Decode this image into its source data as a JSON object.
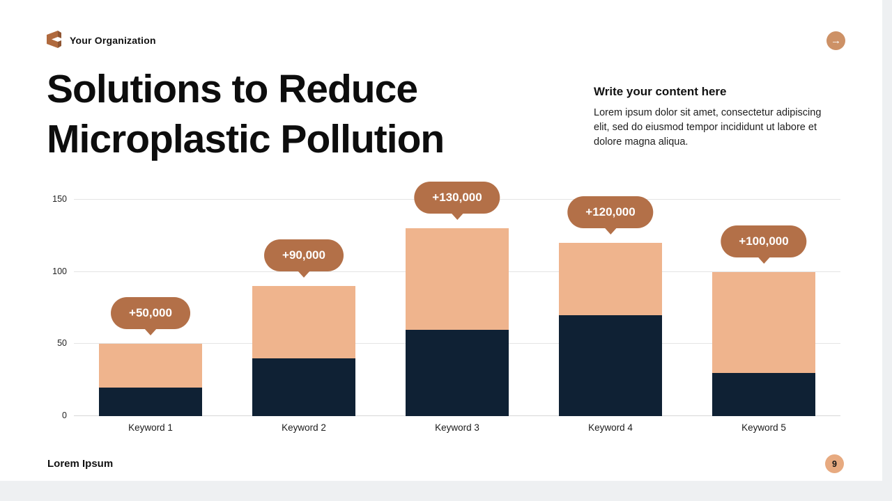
{
  "header": {
    "organization": "Your Organization",
    "logo_icon": "folded-ribbon-logo",
    "next_icon": "arrow-right",
    "next_glyph": "→"
  },
  "title": {
    "line1": "Solutions to Reduce",
    "line2": "Microplastic Pollution"
  },
  "content": {
    "heading": "Write your content here",
    "body": "Lorem ipsum dolor sit amet, consectetur adipiscing elit, sed do eiusmod tempor incididunt ut labore et dolore magna aliqua."
  },
  "footer": {
    "text": "Lorem Ipsum",
    "page_number": "9"
  },
  "colors": {
    "callout": "#b37048",
    "bar_dark": "#0f2134",
    "bar_light": "#efb48d",
    "accent_circle": "#cd9166",
    "page_badge": "#e7aa80"
  },
  "chart_data": {
    "type": "bar",
    "stacked": true,
    "title": "",
    "xlabel": "",
    "ylabel": "",
    "categories": [
      "Keyword 1",
      "Keyword 2",
      "Keyword 3",
      "Keyword 4",
      "Keyword 5"
    ],
    "series": [
      {
        "name": "bottom-segment",
        "color": "#0f2134",
        "values": [
          20,
          40,
          60,
          70,
          30
        ]
      },
      {
        "name": "top-segment",
        "color": "#efb48d",
        "values": [
          30,
          50,
          70,
          50,
          70
        ]
      }
    ],
    "totals": [
      50,
      90,
      130,
      120,
      100
    ],
    "callouts": [
      "+50,000",
      "+90,000",
      "+130,000",
      "+120,000",
      "+100,000"
    ],
    "y_ticks": [
      0,
      50,
      100,
      150
    ],
    "ylim": [
      0,
      150
    ],
    "grid": true,
    "legend": "none"
  }
}
